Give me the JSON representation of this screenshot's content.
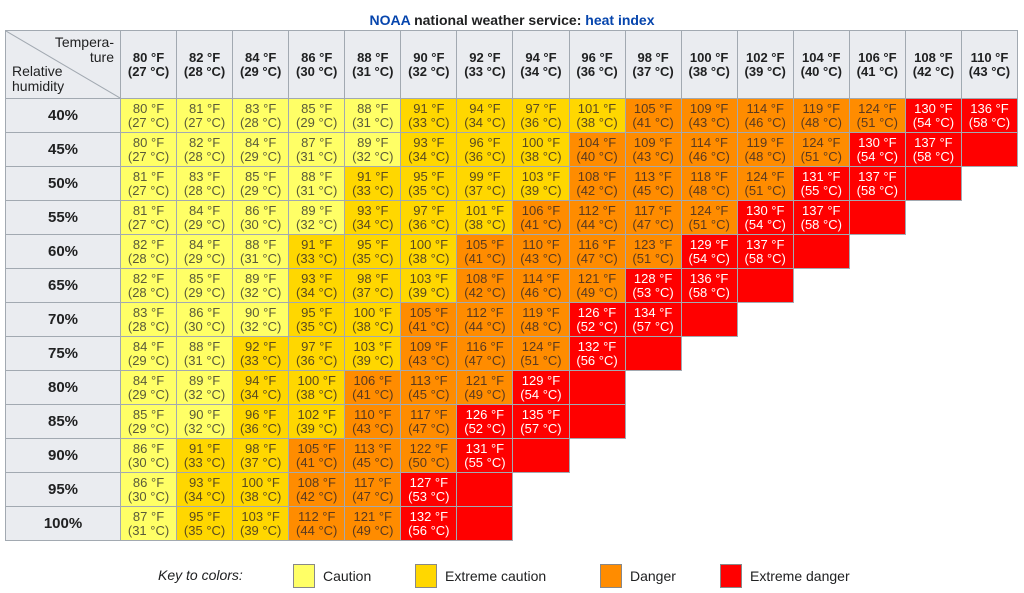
{
  "title": {
    "part1": "NOAA",
    "part2": " national weather service: ",
    "part3": "heat index"
  },
  "corner": {
    "top": "Tempera-\nture",
    "bottom": "Relative\nhumidity"
  },
  "colors": {
    "c": "#ffff66",
    "e": "#ffd700",
    "d": "#ff8c00",
    "x": "#ff0000"
  },
  "legend": {
    "label": "Key to colors:",
    "items": [
      {
        "level": "c",
        "label": "Caution"
      },
      {
        "level": "e",
        "label": "Extreme caution"
      },
      {
        "level": "d",
        "label": "Danger"
      },
      {
        "level": "x",
        "label": "Extreme danger"
      }
    ]
  },
  "chart_data": {
    "type": "table",
    "title": "NOAA national weather service: heat index",
    "columns": [
      {
        "f": "80 °F",
        "c": "(27 °C)"
      },
      {
        "f": "82 °F",
        "c": "(28 °C)"
      },
      {
        "f": "84 °F",
        "c": "(29 °C)"
      },
      {
        "f": "86 °F",
        "c": "(30 °C)"
      },
      {
        "f": "88 °F",
        "c": "(31 °C)"
      },
      {
        "f": "90 °F",
        "c": "(32 °C)"
      },
      {
        "f": "92 °F",
        "c": "(33 °C)"
      },
      {
        "f": "94 °F",
        "c": "(34 °C)"
      },
      {
        "f": "96 °F",
        "c": "(36 °C)"
      },
      {
        "f": "98 °F",
        "c": "(37 °C)"
      },
      {
        "f": "100 °F",
        "c": "(38 °C)"
      },
      {
        "f": "102 °F",
        "c": "(39 °C)"
      },
      {
        "f": "104 °F",
        "c": "(40 °C)"
      },
      {
        "f": "106 °F",
        "c": "(41 °C)"
      },
      {
        "f": "108 °F",
        "c": "(42 °C)"
      },
      {
        "f": "110 °F",
        "c": "(43 °C)"
      }
    ],
    "rows": [
      {
        "rh": "40%",
        "cells": [
          [
            "80 °F",
            "(27 °C)",
            "c"
          ],
          [
            "81 °F",
            "(27 °C)",
            "c"
          ],
          [
            "83 °F",
            "(28 °C)",
            "c"
          ],
          [
            "85 °F",
            "(29 °C)",
            "c"
          ],
          [
            "88 °F",
            "(31 °C)",
            "c"
          ],
          [
            "91 °F",
            "(33 °C)",
            "e"
          ],
          [
            "94 °F",
            "(34 °C)",
            "e"
          ],
          [
            "97 °F",
            "(36 °C)",
            "e"
          ],
          [
            "101 °F",
            "(38 °C)",
            "e"
          ],
          [
            "105 °F",
            "(41 °C)",
            "d"
          ],
          [
            "109 °F",
            "(43 °C)",
            "d"
          ],
          [
            "114 °F",
            "(46 °C)",
            "d"
          ],
          [
            "119 °F",
            "(48 °C)",
            "d"
          ],
          [
            "124 °F",
            "(51 °C)",
            "d"
          ],
          [
            "130 °F",
            "(54 °C)",
            "x"
          ],
          [
            "136 °F",
            "(58 °C)",
            "x"
          ]
        ],
        "filler": 0
      },
      {
        "rh": "45%",
        "cells": [
          [
            "80 °F",
            "(27 °C)",
            "c"
          ],
          [
            "82 °F",
            "(28 °C)",
            "c"
          ],
          [
            "84 °F",
            "(29 °C)",
            "c"
          ],
          [
            "87 °F",
            "(31 °C)",
            "c"
          ],
          [
            "89 °F",
            "(32 °C)",
            "c"
          ],
          [
            "93 °F",
            "(34 °C)",
            "e"
          ],
          [
            "96 °F",
            "(36 °C)",
            "e"
          ],
          [
            "100 °F",
            "(38 °C)",
            "e"
          ],
          [
            "104 °F",
            "(40 °C)",
            "d"
          ],
          [
            "109 °F",
            "(43 °C)",
            "d"
          ],
          [
            "114 °F",
            "(46 °C)",
            "d"
          ],
          [
            "119 °F",
            "(48 °C)",
            "d"
          ],
          [
            "124 °F",
            "(51 °C)",
            "d"
          ],
          [
            "130 °F",
            "(54 °C)",
            "x"
          ],
          [
            "137 °F",
            "(58 °C)",
            "x"
          ]
        ],
        "filler": 1
      },
      {
        "rh": "50%",
        "cells": [
          [
            "81 °F",
            "(27 °C)",
            "c"
          ],
          [
            "83 °F",
            "(28 °C)",
            "c"
          ],
          [
            "85 °F",
            "(29 °C)",
            "c"
          ],
          [
            "88 °F",
            "(31 °C)",
            "c"
          ],
          [
            "91 °F",
            "(33 °C)",
            "e"
          ],
          [
            "95 °F",
            "(35 °C)",
            "e"
          ],
          [
            "99 °F",
            "(37 °C)",
            "e"
          ],
          [
            "103 °F",
            "(39 °C)",
            "e"
          ],
          [
            "108 °F",
            "(42 °C)",
            "d"
          ],
          [
            "113 °F",
            "(45 °C)",
            "d"
          ],
          [
            "118 °F",
            "(48 °C)",
            "d"
          ],
          [
            "124 °F",
            "(51 °C)",
            "d"
          ],
          [
            "131 °F",
            "(55 °C)",
            "x"
          ],
          [
            "137 °F",
            "(58 °C)",
            "x"
          ]
        ],
        "filler": 1
      },
      {
        "rh": "55%",
        "cells": [
          [
            "81 °F",
            "(27 °C)",
            "c"
          ],
          [
            "84 °F",
            "(29 °C)",
            "c"
          ],
          [
            "86 °F",
            "(30 °C)",
            "c"
          ],
          [
            "89 °F",
            "(32 °C)",
            "c"
          ],
          [
            "93 °F",
            "(34 °C)",
            "e"
          ],
          [
            "97 °F",
            "(36 °C)",
            "e"
          ],
          [
            "101 °F",
            "(38 °C)",
            "e"
          ],
          [
            "106 °F",
            "(41 °C)",
            "d"
          ],
          [
            "112 °F",
            "(44 °C)",
            "d"
          ],
          [
            "117 °F",
            "(47 °C)",
            "d"
          ],
          [
            "124 °F",
            "(51 °C)",
            "d"
          ],
          [
            "130 °F",
            "(54 °C)",
            "x"
          ],
          [
            "137 °F",
            "(58 °C)",
            "x"
          ]
        ],
        "filler": 1
      },
      {
        "rh": "60%",
        "cells": [
          [
            "82 °F",
            "(28 °C)",
            "c"
          ],
          [
            "84 °F",
            "(29 °C)",
            "c"
          ],
          [
            "88 °F",
            "(31 °C)",
            "c"
          ],
          [
            "91 °F",
            "(33 °C)",
            "e"
          ],
          [
            "95 °F",
            "(35 °C)",
            "e"
          ],
          [
            "100 °F",
            "(38 °C)",
            "e"
          ],
          [
            "105 °F",
            "(41 °C)",
            "d"
          ],
          [
            "110 °F",
            "(43 °C)",
            "d"
          ],
          [
            "116 °F",
            "(47 °C)",
            "d"
          ],
          [
            "123 °F",
            "(51 °C)",
            "d"
          ],
          [
            "129 °F",
            "(54 °C)",
            "x"
          ],
          [
            "137 °F",
            "(58 °C)",
            "x"
          ]
        ],
        "filler": 1
      },
      {
        "rh": "65%",
        "cells": [
          [
            "82 °F",
            "(28 °C)",
            "c"
          ],
          [
            "85 °F",
            "(29 °C)",
            "c"
          ],
          [
            "89 °F",
            "(32 °C)",
            "c"
          ],
          [
            "93 °F",
            "(34 °C)",
            "e"
          ],
          [
            "98 °F",
            "(37 °C)",
            "e"
          ],
          [
            "103 °F",
            "(39 °C)",
            "e"
          ],
          [
            "108 °F",
            "(42 °C)",
            "d"
          ],
          [
            "114 °F",
            "(46 °C)",
            "d"
          ],
          [
            "121 °F",
            "(49 °C)",
            "d"
          ],
          [
            "128 °F",
            "(53 °C)",
            "x"
          ],
          [
            "136 °F",
            "(58 °C)",
            "x"
          ]
        ],
        "filler": 1
      },
      {
        "rh": "70%",
        "cells": [
          [
            "83 °F",
            "(28 °C)",
            "c"
          ],
          [
            "86 °F",
            "(30 °C)",
            "c"
          ],
          [
            "90 °F",
            "(32 °C)",
            "c"
          ],
          [
            "95 °F",
            "(35 °C)",
            "e"
          ],
          [
            "100 °F",
            "(38 °C)",
            "e"
          ],
          [
            "105 °F",
            "(41 °C)",
            "d"
          ],
          [
            "112 °F",
            "(44 °C)",
            "d"
          ],
          [
            "119 °F",
            "(48 °C)",
            "d"
          ],
          [
            "126 °F",
            "(52 °C)",
            "x"
          ],
          [
            "134 °F",
            "(57 °C)",
            "x"
          ]
        ],
        "filler": 1
      },
      {
        "rh": "75%",
        "cells": [
          [
            "84 °F",
            "(29 °C)",
            "c"
          ],
          [
            "88 °F",
            "(31 °C)",
            "c"
          ],
          [
            "92 °F",
            "(33 °C)",
            "e"
          ],
          [
            "97 °F",
            "(36 °C)",
            "e"
          ],
          [
            "103 °F",
            "(39 °C)",
            "e"
          ],
          [
            "109 °F",
            "(43 °C)",
            "d"
          ],
          [
            "116 °F",
            "(47 °C)",
            "d"
          ],
          [
            "124 °F",
            "(51 °C)",
            "d"
          ],
          [
            "132 °F",
            "(56 °C)",
            "x"
          ]
        ],
        "filler": 1
      },
      {
        "rh": "80%",
        "cells": [
          [
            "84 °F",
            "(29 °C)",
            "c"
          ],
          [
            "89 °F",
            "(32 °C)",
            "c"
          ],
          [
            "94 °F",
            "(34 °C)",
            "e"
          ],
          [
            "100 °F",
            "(38 °C)",
            "e"
          ],
          [
            "106 °F",
            "(41 °C)",
            "d"
          ],
          [
            "113 °F",
            "(45 °C)",
            "d"
          ],
          [
            "121 °F",
            "(49 °C)",
            "d"
          ],
          [
            "129 °F",
            "(54 °C)",
            "x"
          ]
        ],
        "filler": 1
      },
      {
        "rh": "85%",
        "cells": [
          [
            "85 °F",
            "(29 °C)",
            "c"
          ],
          [
            "90 °F",
            "(32 °C)",
            "c"
          ],
          [
            "96 °F",
            "(36 °C)",
            "e"
          ],
          [
            "102 °F",
            "(39 °C)",
            "e"
          ],
          [
            "110 °F",
            "(43 °C)",
            "d"
          ],
          [
            "117 °F",
            "(47 °C)",
            "d"
          ],
          [
            "126 °F",
            "(52 °C)",
            "x"
          ],
          [
            "135 °F",
            "(57 °C)",
            "x"
          ]
        ],
        "filler": 1
      },
      {
        "rh": "90%",
        "cells": [
          [
            "86 °F",
            "(30 °C)",
            "c"
          ],
          [
            "91 °F",
            "(33 °C)",
            "e"
          ],
          [
            "98 °F",
            "(37 °C)",
            "e"
          ],
          [
            "105 °F",
            "(41 °C)",
            "d"
          ],
          [
            "113 °F",
            "(45 °C)",
            "d"
          ],
          [
            "122 °F",
            "(50 °C)",
            "d"
          ],
          [
            "131 °F",
            "(55 °C)",
            "x"
          ]
        ],
        "filler": 1
      },
      {
        "rh": "95%",
        "cells": [
          [
            "86 °F",
            "(30 °C)",
            "c"
          ],
          [
            "93 °F",
            "(34 °C)",
            "e"
          ],
          [
            "100 °F",
            "(38 °C)",
            "e"
          ],
          [
            "108 °F",
            "(42 °C)",
            "d"
          ],
          [
            "117 °F",
            "(47 °C)",
            "d"
          ],
          [
            "127 °F",
            "(53 °C)",
            "x"
          ]
        ],
        "filler": 1
      },
      {
        "rh": "100%",
        "cells": [
          [
            "87 °F",
            "(31 °C)",
            "c"
          ],
          [
            "95 °F",
            "(35 °C)",
            "e"
          ],
          [
            "103 °F",
            "(39 °C)",
            "e"
          ],
          [
            "112 °F",
            "(44 °C)",
            "d"
          ],
          [
            "121 °F",
            "(49 °C)",
            "d"
          ],
          [
            "132 °F",
            "(56 °C)",
            "x"
          ]
        ],
        "filler": 1
      }
    ]
  }
}
